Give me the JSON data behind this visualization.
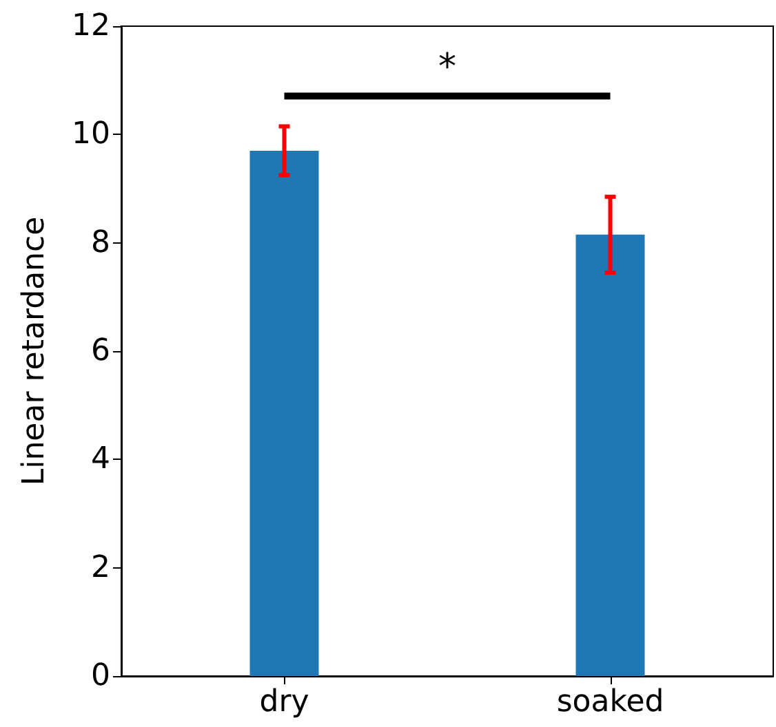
{
  "chart_data": {
    "type": "bar",
    "ylabel": "Linear retardance",
    "categories": [
      "dry",
      "soaked"
    ],
    "values": [
      9.7,
      8.15
    ],
    "color": "#1f77b4",
    "errors": [
      0.45,
      0.7
    ],
    "ylim": [
      0,
      12
    ],
    "yticks": [
      0,
      2,
      4,
      6,
      8,
      10,
      12
    ],
    "annotations": [
      "*"
    ]
  }
}
